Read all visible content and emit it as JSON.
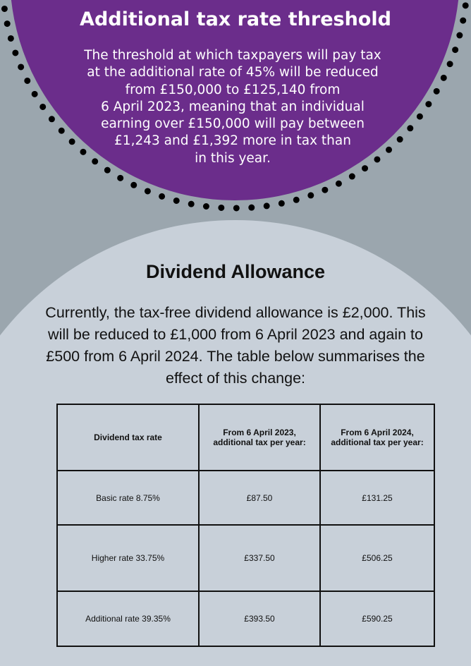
{
  "colors": {
    "background": "#9ba6ae",
    "purple": "#6b2d8b",
    "light_circle": "#c8d0d9",
    "dots": "#000000"
  },
  "threshold": {
    "title": "Additional tax rate threshold",
    "lines": [
      "The threshold at which taxpayers will pay tax",
      "at the additional rate of 45% will be reduced",
      "from £150,000 to £125,140 from",
      "6 April 2023, meaning that an individual",
      "earning over £150,000 will pay between",
      "£1,243 and £1,392 more in tax than",
      "in this year."
    ]
  },
  "dividend": {
    "title": "Dividend Allowance",
    "text": "Currently, the tax-free dividend allowance is £2,000. This will be reduced to £1,000 from 6 April 2023 and again to £500 from 6 April 2024. The table below summarises the effect of this change:",
    "table": {
      "headers": [
        "Dividend tax rate",
        "From 6 April 2023, additional tax per year:",
        "From 6 April 2024, additional tax per year:"
      ],
      "rows": [
        [
          "Basic rate 8.75%",
          "£87.50",
          "£131.25"
        ],
        [
          "Higher rate 33.75%",
          "£337.50",
          "£506.25"
        ],
        [
          "Additional rate 39.35%",
          "£393.50",
          "£590.25"
        ]
      ]
    }
  }
}
